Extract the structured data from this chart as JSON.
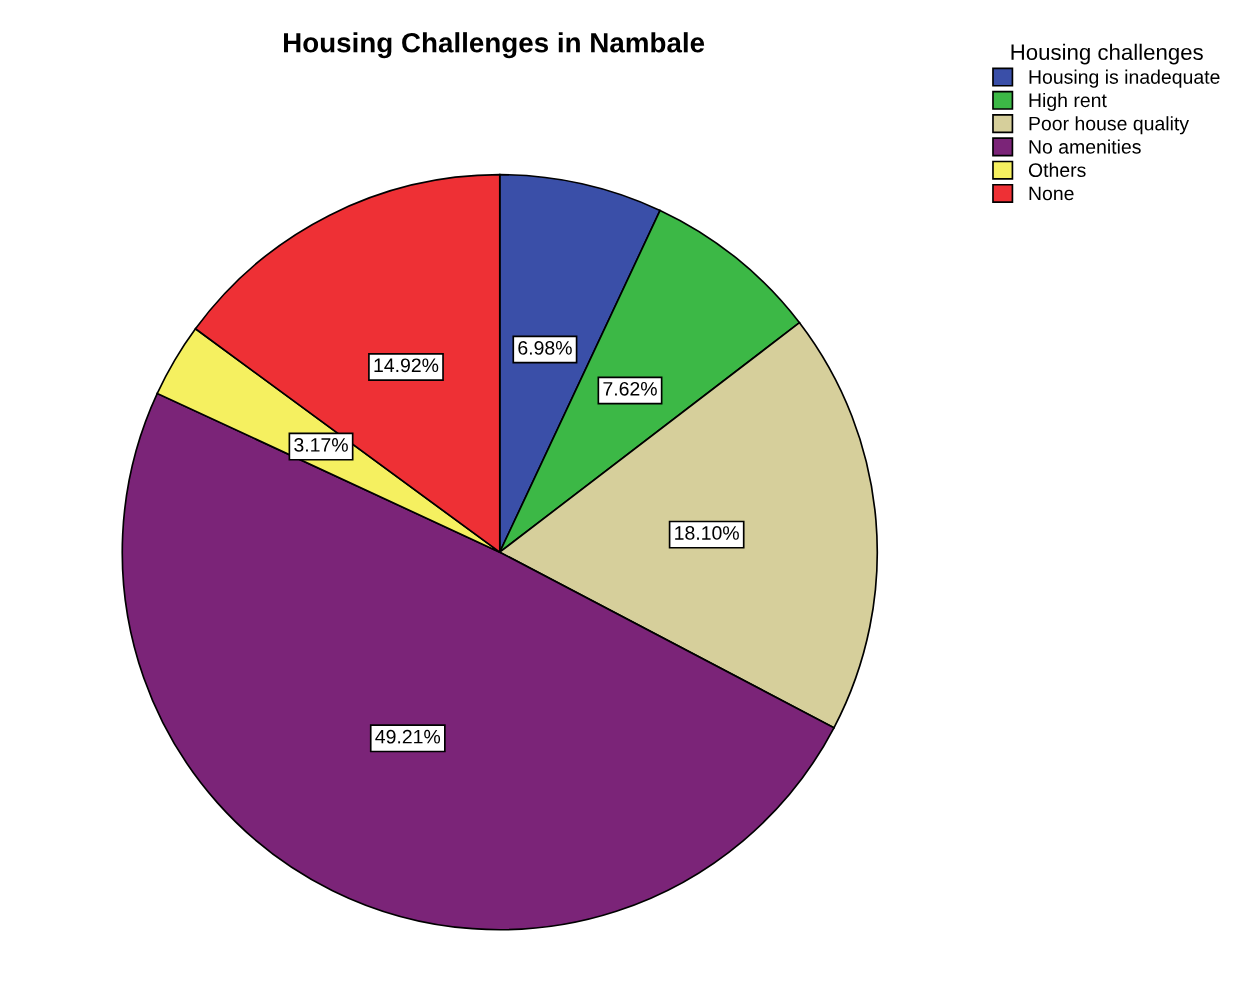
{
  "chart_data": {
    "type": "pie",
    "title": "Housing Challenges in Nambale",
    "legend_title": "Housing challenges",
    "legend": "top right",
    "categories": [
      "Housing is inadequate",
      "High rent",
      "Poor house quality",
      "No amenities",
      "Others",
      "None"
    ],
    "values": [
      6.98,
      7.62,
      18.1,
      49.21,
      3.17,
      14.92
    ],
    "colors": [
      "#3a4fa8",
      "#3cb846",
      "#d6cf9b",
      "#7b2478",
      "#f5f060",
      "#ee3035"
    ],
    "value_labels": [
      "6.98%",
      "7.62%",
      "18.10%",
      "49.21%",
      "3.17%",
      "14.92%"
    ]
  }
}
